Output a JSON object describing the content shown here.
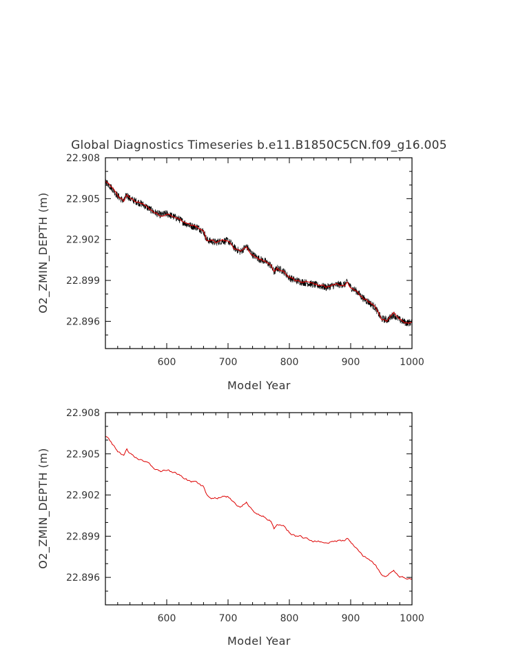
{
  "chart_data": [
    {
      "type": "line",
      "title": "Global Diagnostics Timeseries b.e11.B1850C5CN.f09_g16.005",
      "xlabel": "Model Year",
      "ylabel": "O2_ZMIN_DEPTH (m)",
      "xlim": [
        500,
        1000
      ],
      "ylim": [
        22.894,
        22.908
      ],
      "xticks": [
        600,
        700,
        800,
        900,
        1000
      ],
      "xtick_labels": [
        "600",
        "700",
        "800",
        "900",
        "1000"
      ],
      "yticks": [
        22.896,
        22.899,
        22.902,
        22.905,
        22.908
      ],
      "ytick_labels": [
        "22.896",
        "22.899",
        "22.902",
        "22.905",
        "22.908"
      ],
      "colors": {
        "raw": "#000000",
        "smoothed": "#dd0000"
      },
      "series": [
        {
          "x": [
            500,
            510,
            520,
            530,
            535,
            540,
            550,
            560,
            570,
            580,
            590,
            600,
            610,
            620,
            630,
            640,
            650,
            660,
            665,
            670,
            680,
            690,
            700,
            705,
            710,
            720,
            730,
            740,
            750,
            760,
            770,
            775,
            780,
            790,
            800,
            810,
            820,
            830,
            840,
            850,
            860,
            870,
            880,
            890,
            895,
            900,
            910,
            920,
            930,
            940,
            950,
            960,
            970,
            980,
            990,
            1000
          ],
          "y": [
            22.9063,
            22.9058,
            22.9052,
            22.9048,
            22.9053,
            22.905,
            22.9048,
            22.9046,
            22.9043,
            22.904,
            22.9038,
            22.9039,
            22.9037,
            22.9035,
            22.9032,
            22.903,
            22.9029,
            22.9026,
            22.902,
            22.9019,
            22.9018,
            22.9019,
            22.9019,
            22.9017,
            22.9014,
            22.9011,
            22.9015,
            22.9009,
            22.9006,
            22.9004,
            22.9001,
            22.8996,
            22.8999,
            22.8997,
            22.8992,
            22.899,
            22.8989,
            22.8988,
            22.8987,
            22.8986,
            22.8985,
            22.8986,
            22.8987,
            22.8987,
            22.8989,
            22.8985,
            22.8982,
            22.8977,
            22.8974,
            22.897,
            22.8962,
            22.8961,
            22.8965,
            22.8961,
            22.8959,
            22.8959
          ]
        }
      ]
    },
    {
      "type": "line",
      "title": "",
      "xlabel": "Model Year",
      "ylabel": "O2_ZMIN_DEPTH (m)",
      "xlim": [
        500,
        1000
      ],
      "ylim": [
        22.894,
        22.908
      ],
      "xticks": [
        600,
        700,
        800,
        900,
        1000
      ],
      "xtick_labels": [
        "600",
        "700",
        "800",
        "900",
        "1000"
      ],
      "yticks": [
        22.896,
        22.899,
        22.902,
        22.905,
        22.908
      ],
      "ytick_labels": [
        "22.896",
        "22.899",
        "22.902",
        "22.905",
        "22.908"
      ],
      "colors": {
        "line": "#dd0000"
      },
      "series": [
        {
          "x": [
            500,
            510,
            520,
            530,
            535,
            540,
            550,
            560,
            570,
            580,
            590,
            600,
            610,
            620,
            630,
            640,
            650,
            660,
            665,
            670,
            680,
            690,
            700,
            705,
            710,
            720,
            730,
            740,
            750,
            760,
            770,
            775,
            780,
            790,
            800,
            810,
            820,
            830,
            840,
            850,
            860,
            870,
            880,
            890,
            895,
            900,
            910,
            920,
            930,
            940,
            950,
            960,
            970,
            980,
            990,
            1000
          ],
          "y": [
            22.9063,
            22.9058,
            22.9052,
            22.9048,
            22.9053,
            22.905,
            22.9048,
            22.9046,
            22.9043,
            22.904,
            22.9038,
            22.9039,
            22.9037,
            22.9035,
            22.9032,
            22.903,
            22.9029,
            22.9026,
            22.902,
            22.9019,
            22.9018,
            22.9019,
            22.9019,
            22.9017,
            22.9014,
            22.9011,
            22.9015,
            22.9009,
            22.9006,
            22.9004,
            22.9001,
            22.8996,
            22.8999,
            22.8997,
            22.8992,
            22.899,
            22.8989,
            22.8988,
            22.8987,
            22.8986,
            22.8985,
            22.8986,
            22.8987,
            22.8987,
            22.8989,
            22.8985,
            22.8982,
            22.8977,
            22.8974,
            22.897,
            22.8962,
            22.8961,
            22.8965,
            22.8961,
            22.8959,
            22.8959
          ]
        }
      ]
    }
  ]
}
